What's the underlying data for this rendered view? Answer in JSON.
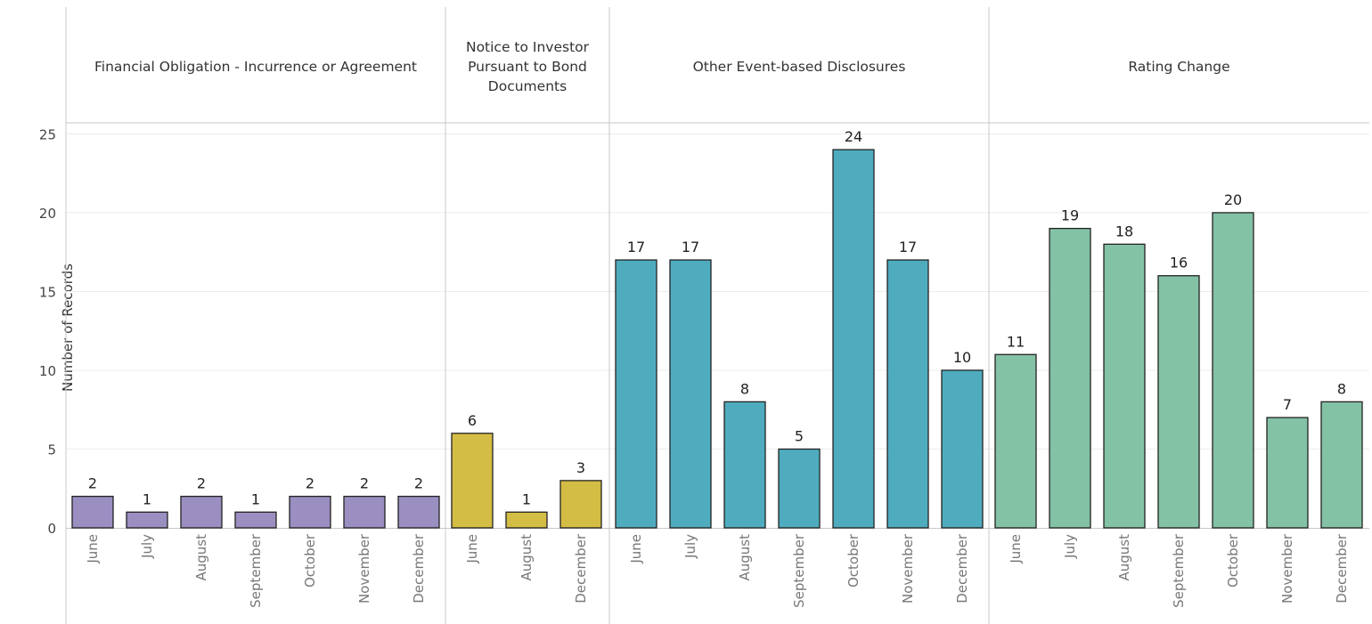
{
  "chart_data": {
    "type": "bar",
    "ylabel": "Number of Records",
    "ylim": [
      0,
      27
    ],
    "yticks": [
      0,
      5,
      10,
      15,
      20,
      25
    ],
    "grid": true,
    "panels": [
      {
        "title": "Financial Obligation - Incurrence or Agreement",
        "color": "#9B8EC0",
        "categories": [
          "June",
          "July",
          "August",
          "September",
          "October",
          "November",
          "December"
        ],
        "values": [
          2,
          1,
          2,
          1,
          2,
          2,
          2
        ]
      },
      {
        "title": "Notice to Investor Pursuant to Bond Documents",
        "color": "#D4BD45",
        "categories": [
          "June",
          "August",
          "December"
        ],
        "values": [
          6,
          1,
          3
        ]
      },
      {
        "title": "Other Event-based Disclosures",
        "color": "#4FACBE",
        "categories": [
          "June",
          "July",
          "August",
          "September",
          "October",
          "November",
          "December"
        ],
        "values": [
          17,
          17,
          8,
          5,
          24,
          17,
          10
        ]
      },
      {
        "title": "Rating Change",
        "color": "#84C2A5",
        "categories": [
          "June",
          "July",
          "August",
          "September",
          "October",
          "November",
          "December"
        ],
        "values": [
          11,
          19,
          18,
          16,
          20,
          7,
          8
        ]
      }
    ]
  }
}
